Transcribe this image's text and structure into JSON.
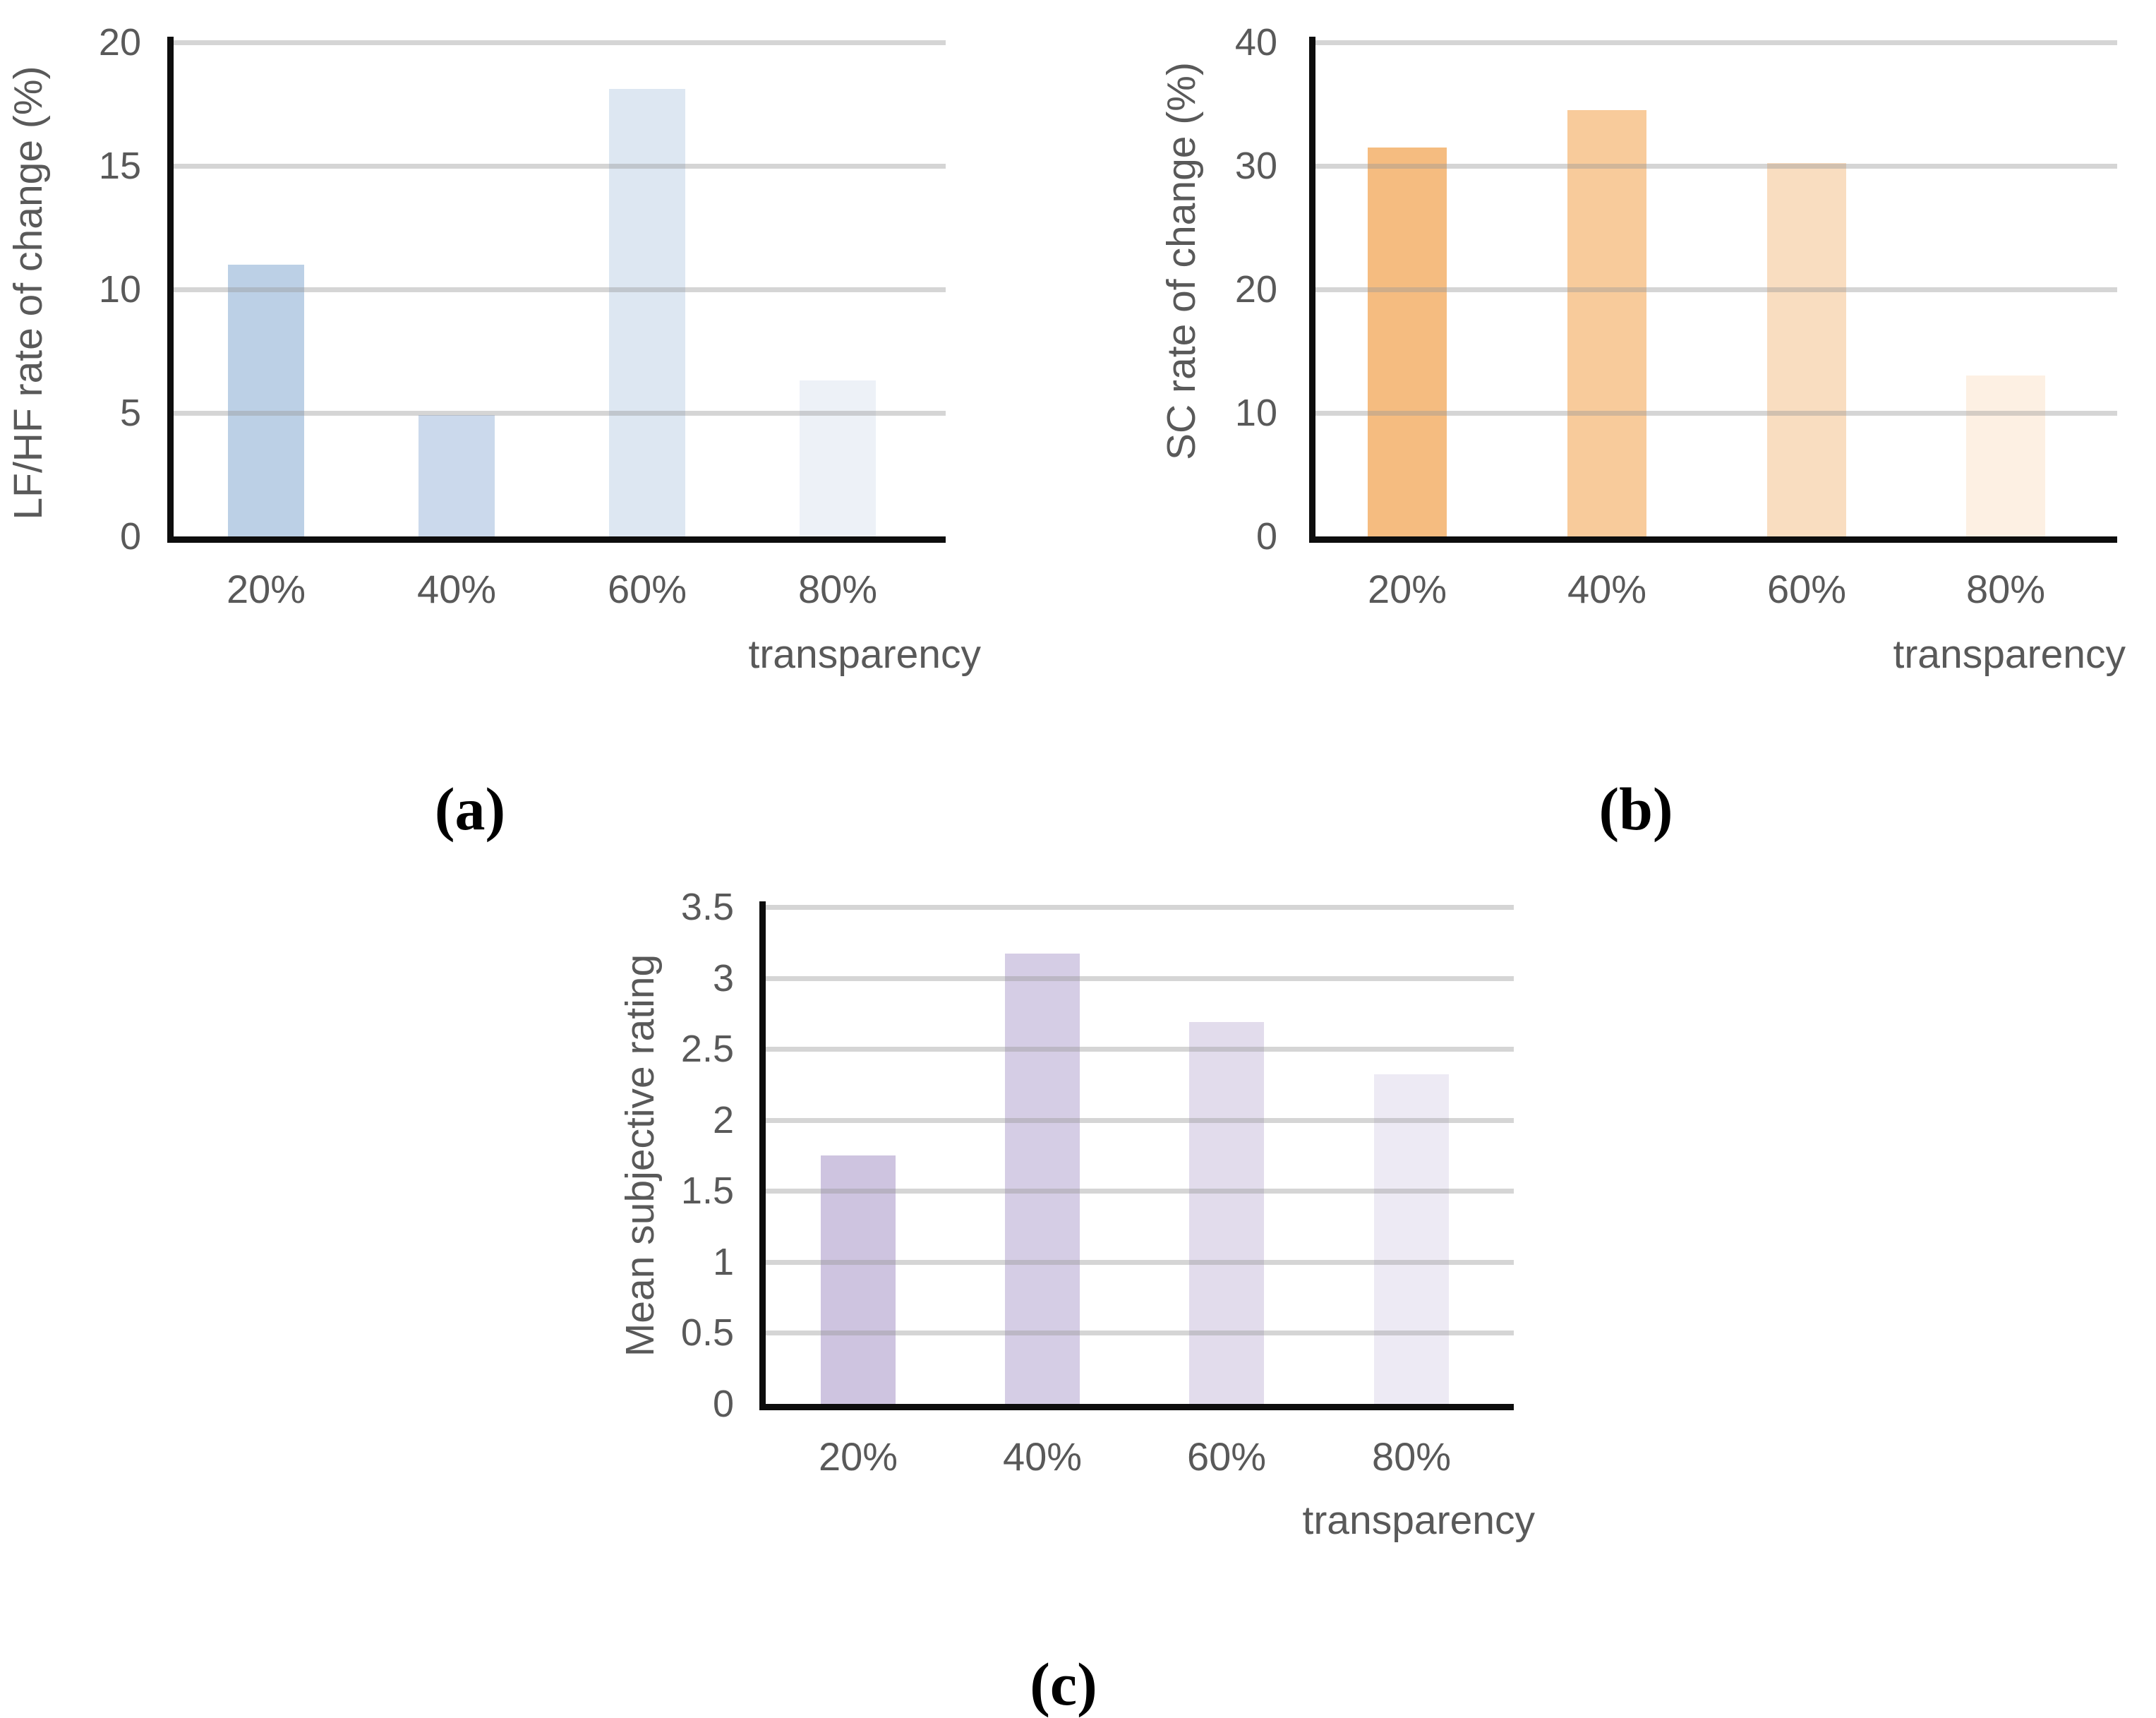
{
  "figure": {
    "background": "#ffffff",
    "text_color": "#595959",
    "gridline_color": "#d9d9d9",
    "axis_color": "#0d0d0d"
  },
  "panels": [
    {
      "caption": "(a)",
      "ylabel": "LF/HF rate of change (%)",
      "xlabel": "transparency",
      "yticks": [
        "0",
        "5",
        "10",
        "15",
        "20"
      ],
      "categories": [
        "20%",
        "40%",
        "60%",
        "80%"
      ],
      "values": [
        11,
        4.9,
        18.1,
        6.3
      ],
      "bar_colors": [
        "#bcd0e6",
        "#cbd9ec",
        "#dde7f2",
        "#edf1f7"
      ]
    },
    {
      "caption": "(b)",
      "ylabel": "SC rate of change (%)",
      "xlabel": "transparency",
      "yticks": [
        "0",
        "10",
        "20",
        "30",
        "40"
      ],
      "categories": [
        "20%",
        "40%",
        "60%",
        "80%"
      ],
      "values": [
        31.5,
        34.5,
        30.2,
        13
      ],
      "bar_colors": [
        "#f5bc80",
        "#f8cb9b",
        "#f9ddc0",
        "#fdf0e3"
      ]
    },
    {
      "caption": "(c)",
      "ylabel": "Mean subjective rating",
      "xlabel": "transparency",
      "yticks": [
        "0",
        "0.5",
        "1",
        "1.5",
        "2",
        "2.5",
        "3",
        "3.5"
      ],
      "categories": [
        "20%",
        "40%",
        "60%",
        "80%"
      ],
      "values": [
        1.75,
        3.17,
        2.69,
        2.32
      ],
      "bar_colors": [
        "#cec4e0",
        "#d5cde5",
        "#e2dcec",
        "#edeaf4"
      ]
    }
  ],
  "chart_data": [
    {
      "type": "bar",
      "panel": "(a)",
      "title": "",
      "categories": [
        "20%",
        "40%",
        "60%",
        "80%"
      ],
      "values": [
        11,
        4.9,
        18.1,
        6.3
      ],
      "xlabel": "transparency",
      "ylabel": "LF/HF rate of change (%)",
      "ylim": [
        0,
        20
      ],
      "ytick_step": 5,
      "grid": "horizontal",
      "legend": "none",
      "bar_colors": [
        "#bcd0e6",
        "#cbd9ec",
        "#dde7f2",
        "#edf1f7"
      ]
    },
    {
      "type": "bar",
      "panel": "(b)",
      "title": "",
      "categories": [
        "20%",
        "40%",
        "60%",
        "80%"
      ],
      "values": [
        31.5,
        34.5,
        30.2,
        13
      ],
      "xlabel": "transparency",
      "ylabel": "SC rate of change (%)",
      "ylim": [
        0,
        40
      ],
      "ytick_step": 10,
      "grid": "horizontal",
      "legend": "none",
      "bar_colors": [
        "#f5bc80",
        "#f8cb9b",
        "#f9ddc0",
        "#fdf0e3"
      ]
    },
    {
      "type": "bar",
      "panel": "(c)",
      "title": "",
      "categories": [
        "20%",
        "40%",
        "60%",
        "80%"
      ],
      "values": [
        1.75,
        3.17,
        2.69,
        2.32
      ],
      "xlabel": "transparency",
      "ylabel": "Mean subjective rating",
      "ylim": [
        0,
        3.5
      ],
      "ytick_step": 0.5,
      "grid": "horizontal",
      "legend": "none",
      "bar_colors": [
        "#cec4e0",
        "#d5cde5",
        "#e2dcec",
        "#edeaf4"
      ]
    }
  ]
}
